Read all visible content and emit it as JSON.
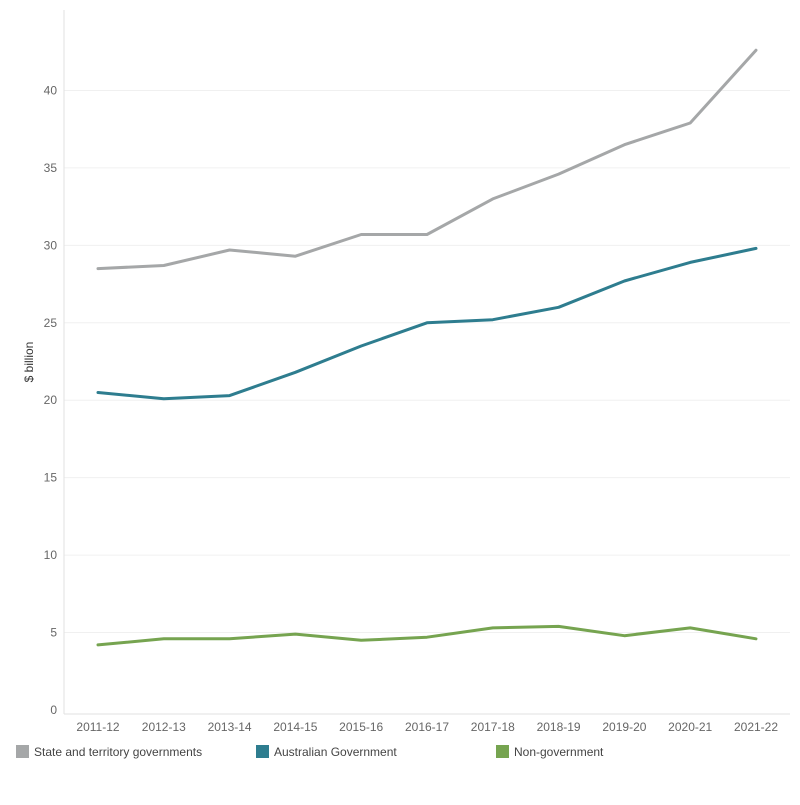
{
  "chart_data": {
    "type": "line",
    "title": "",
    "xlabel": "",
    "ylabel": "$ billion",
    "ylim": [
      0,
      45
    ],
    "yticks": [
      0,
      5,
      10,
      15,
      20,
      25,
      30,
      35,
      40
    ],
    "grid": true,
    "legend_position": "bottom",
    "categories": [
      "2011-12",
      "2012-13",
      "2013-14",
      "2014-15",
      "2015-16",
      "2016-17",
      "2017-18",
      "2018-19",
      "2019-20",
      "2020-21",
      "2021-22"
    ],
    "series": [
      {
        "name": "State and territory governments",
        "color": "#a5a7a8",
        "values": [
          28.5,
          28.7,
          29.7,
          29.3,
          30.7,
          30.7,
          33.0,
          34.6,
          36.5,
          37.9,
          42.6
        ]
      },
      {
        "name": "Australian Government",
        "color": "#2e7d8f",
        "values": [
          20.5,
          20.1,
          20.3,
          21.8,
          23.5,
          25.0,
          25.2,
          26.0,
          27.7,
          28.9,
          29.8
        ]
      },
      {
        "name": "Non-government",
        "color": "#76a450",
        "values": [
          4.2,
          4.6,
          4.6,
          4.9,
          4.5,
          4.7,
          5.3,
          5.4,
          4.8,
          5.3,
          4.6
        ]
      }
    ]
  }
}
